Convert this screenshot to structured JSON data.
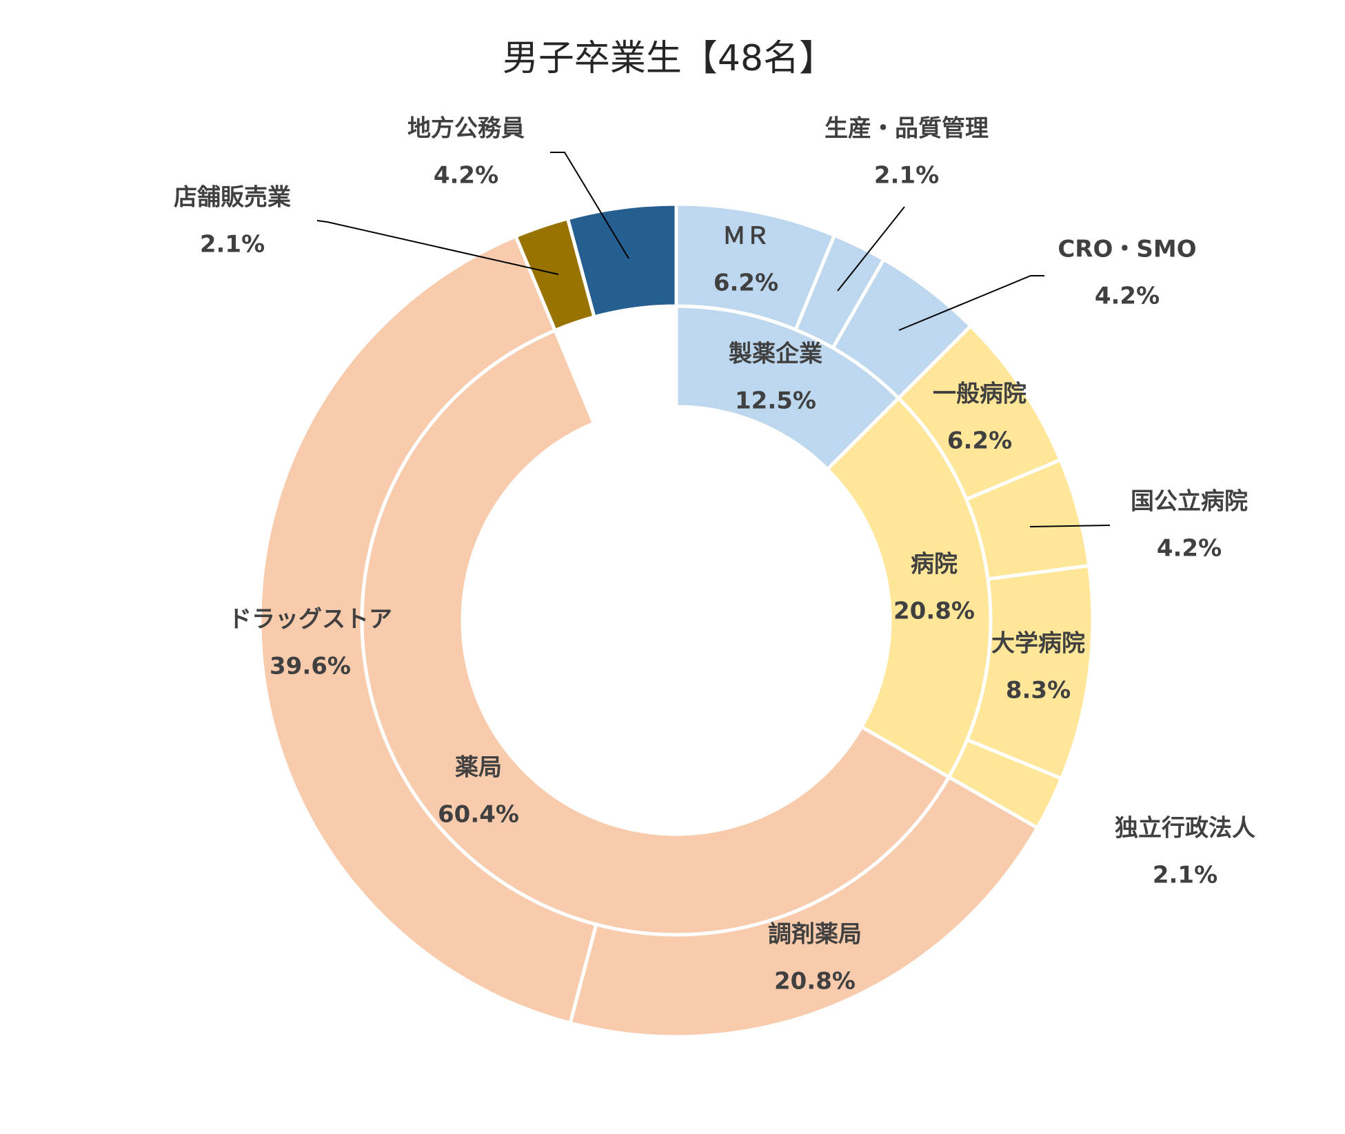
{
  "chart_data": {
    "type": "donut",
    "title": "男子卒業生【48名】",
    "rings": [
      {
        "categories": [
          "製薬企業",
          "病院",
          "薬局"
        ],
        "values": [
          12.5,
          20.8,
          60.4
        ],
        "value_labels": [
          "12.5%",
          "20.8%",
          "60.4%"
        ],
        "colors": [
          "#bdd7ee",
          "#ffe699",
          "#f8cbad"
        ]
      },
      {
        "categories": [
          "ＭＲ",
          "生産・品質管理",
          "CRO・SMO",
          "一般病院",
          "国公立病院",
          "大学病院",
          "独立行政法人",
          "調剤薬局",
          "ドラッグストア",
          "店舗販売業",
          "地方公務員"
        ],
        "values": [
          6.2,
          2.1,
          4.2,
          6.2,
          4.2,
          8.3,
          2.1,
          20.8,
          39.6,
          2.1,
          4.2
        ],
        "value_labels": [
          "6.2%",
          "2.1%",
          "4.2%",
          "6.2%",
          "4.2%",
          "8.3%",
          "2.1%",
          "20.8%",
          "39.6%",
          "2.1%",
          "4.2%"
        ],
        "colors": [
          "#bdd7ee",
          "#bdd7ee",
          "#bdd7ee",
          "#ffe699",
          "#ffe699",
          "#ffe699",
          "#ffe699",
          "#f8cbad",
          "#f8cbad",
          "#997300",
          "#255e91"
        ]
      }
    ]
  }
}
